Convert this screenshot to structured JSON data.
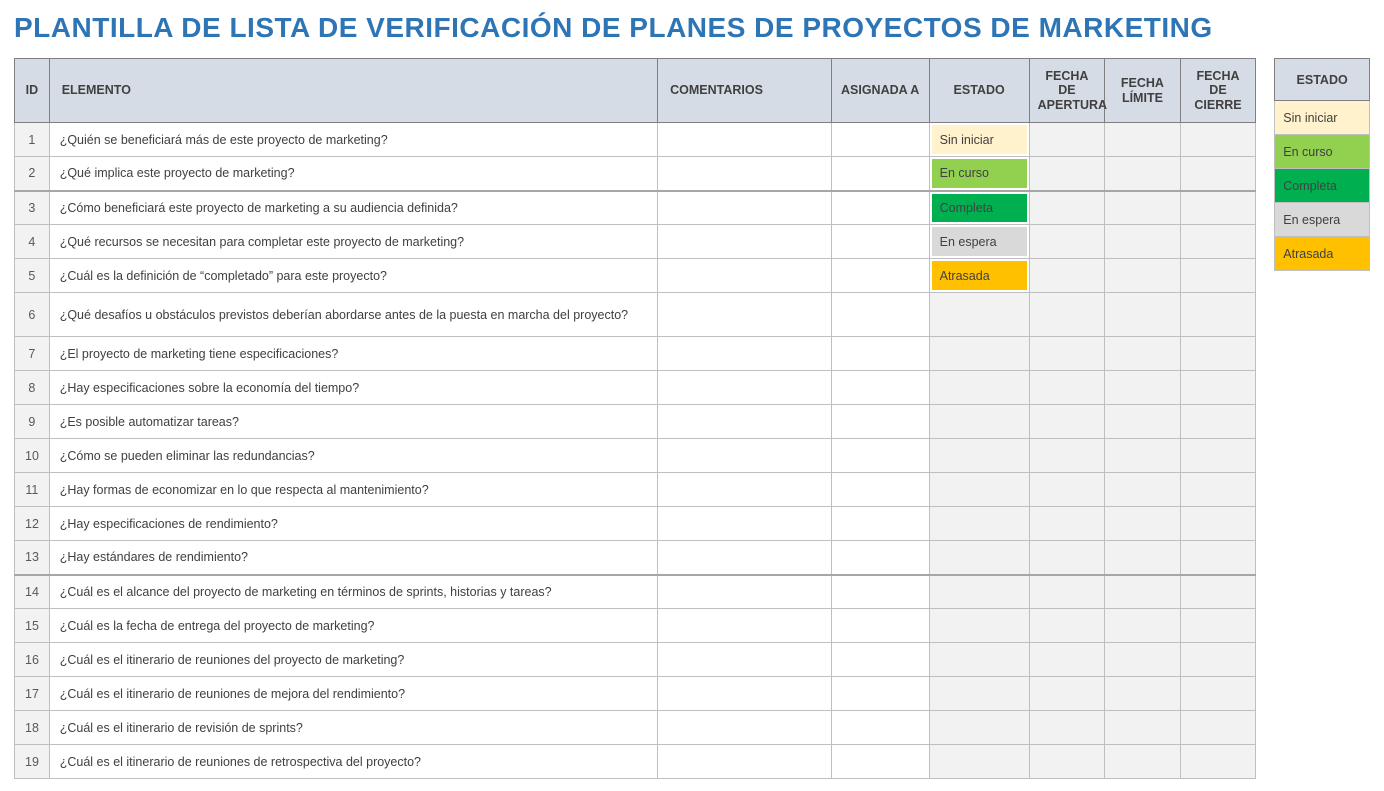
{
  "title": "PLANTILLA DE LISTA DE VERIFICACIÓN DE PLANES DE PROYECTOS DE MARKETING",
  "title_color": "#2e75b6",
  "columns": {
    "id": "ID",
    "elemento": "ELEMENTO",
    "comentarios": "COMENTARIOS",
    "asignada": "ASIGNADA A",
    "estado": "ESTADO",
    "apertura": "FECHA DE APERTURA",
    "limite": "FECHA LÍMITE",
    "cierre": "FECHA DE CIERRE"
  },
  "legend_header": "ESTADO",
  "statuses": [
    {
      "label": "Sin iniciar",
      "bg": "#fff2cc"
    },
    {
      "label": "En curso",
      "bg": "#92d050"
    },
    {
      "label": "Completa",
      "bg": "#00b050"
    },
    {
      "label": "En espera",
      "bg": "#d9d9d9"
    },
    {
      "label": "Atrasada",
      "bg": "#ffc000"
    }
  ],
  "rows": [
    {
      "id": 1,
      "elemento": "¿Quién se beneficiará más de este proyecto de marketing?",
      "status_idx": 0,
      "group_end": false
    },
    {
      "id": 2,
      "elemento": "¿Qué implica este proyecto de marketing?",
      "status_idx": 1,
      "group_end": true
    },
    {
      "id": 3,
      "elemento": "¿Cómo beneficiará este proyecto de marketing a su audiencia definida?",
      "status_idx": 2,
      "group_end": false
    },
    {
      "id": 4,
      "elemento": "¿Qué recursos se necesitan para completar este proyecto de marketing?",
      "status_idx": 3,
      "group_end": false
    },
    {
      "id": 5,
      "elemento": "¿Cuál es la definición de “completado” para este proyecto?",
      "status_idx": 4,
      "group_end": false
    },
    {
      "id": 6,
      "elemento": "¿Qué desafíos u obstáculos previstos deberían abordarse antes de la puesta en marcha del proyecto?",
      "status_idx": null,
      "group_end": false,
      "tall": true
    },
    {
      "id": 7,
      "elemento": "¿El proyecto de marketing tiene especificaciones?",
      "status_idx": null,
      "group_end": false
    },
    {
      "id": 8,
      "elemento": "¿Hay especificaciones sobre la economía del tiempo?",
      "status_idx": null,
      "group_end": false
    },
    {
      "id": 9,
      "elemento": "¿Es posible automatizar tareas?",
      "status_idx": null,
      "group_end": false
    },
    {
      "id": 10,
      "elemento": "¿Cómo se pueden eliminar las redundancias?",
      "status_idx": null,
      "group_end": false
    },
    {
      "id": 11,
      "elemento": "¿Hay formas de economizar en lo que respecta al mantenimiento?",
      "status_idx": null,
      "group_end": false
    },
    {
      "id": 12,
      "elemento": "¿Hay especificaciones de rendimiento?",
      "status_idx": null,
      "group_end": false
    },
    {
      "id": 13,
      "elemento": "¿Hay estándares de rendimiento?",
      "status_idx": null,
      "group_end": true
    },
    {
      "id": 14,
      "elemento": "¿Cuál es el alcance del proyecto de marketing en términos de sprints, historias y tareas?",
      "status_idx": null,
      "group_end": false
    },
    {
      "id": 15,
      "elemento": "¿Cuál es la fecha de entrega del proyecto de marketing?",
      "status_idx": null,
      "group_end": false
    },
    {
      "id": 16,
      "elemento": "¿Cuál es el itinerario de reuniones del proyecto de marketing?",
      "status_idx": null,
      "group_end": false
    },
    {
      "id": 17,
      "elemento": "¿Cuál es el itinerario de reuniones de mejora del rendimiento?",
      "status_idx": null,
      "group_end": false
    },
    {
      "id": 18,
      "elemento": "¿Cuál es el itinerario de revisión de sprints?",
      "status_idx": null,
      "group_end": false
    },
    {
      "id": 19,
      "elemento": "¿Cuál es el itinerario de reuniones de retrospectiva del proyecto?",
      "status_idx": null,
      "group_end": false
    }
  ]
}
